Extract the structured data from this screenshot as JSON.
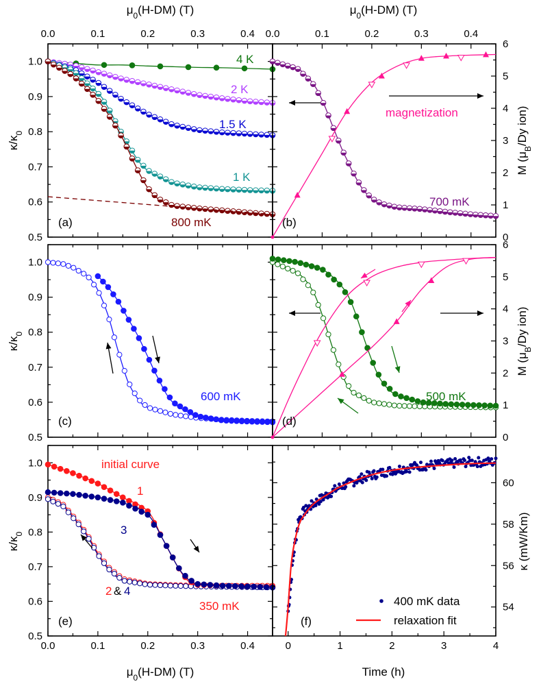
{
  "figure": {
    "x_axis_label": "μ0(H-DM) (T)",
    "y_axis_label_ratio": "κ/κ0",
    "y_axis_label_moment": "M (μB/Dy ion)",
    "y_axis_label_kappa": "κ (mW/Km)",
    "x_axis_label_time": "Time (h)"
  },
  "colors": {
    "dark_red": "#7a0000",
    "teal": "#149494",
    "blue": "#0a0ad2",
    "violet": "#b040ff",
    "green": "#117711",
    "pink": "#ff1493",
    "purple": "#7a1585",
    "bright_blue": "#1a1aff",
    "red": "#ff1a1a",
    "navy": "#00008b"
  },
  "panels": {
    "a": {
      "label": "(a)",
      "annotations": [
        {
          "text": "4 K",
          "color": "#117711"
        },
        {
          "text": "2 K",
          "color": "#b040ff"
        },
        {
          "text": "1.5 K",
          "color": "#0a0ad2"
        },
        {
          "text": "1 K",
          "color": "#149494"
        },
        {
          "text": "800 mK",
          "color": "#7a0000"
        }
      ]
    },
    "b": {
      "label": "(b)",
      "annotations": [
        {
          "text": "magnetization",
          "color": "#ff1493"
        },
        {
          "text": "700 mK",
          "color": "#7a1585"
        }
      ]
    },
    "c": {
      "label": "(c)",
      "annotations": [
        {
          "text": "600 mK",
          "color": "#1a1aff"
        }
      ]
    },
    "d": {
      "label": "(d)",
      "annotations": [
        {
          "text": "500 mK",
          "color": "#117711"
        }
      ]
    },
    "e": {
      "label": "(e)",
      "annotations": [
        {
          "text": "initial curve",
          "color": "#ff1a1a"
        },
        {
          "text": "1",
          "color": "#ff1a1a"
        },
        {
          "text": "3",
          "color": "#00008b"
        },
        {
          "text": "350 mK",
          "color": "#ff1a1a"
        }
      ],
      "label_2": "2",
      "label_amp": "&",
      "label_4": "4"
    },
    "f": {
      "label": "(f)",
      "legend": [
        {
          "text": "400 mK data",
          "color": "#00008b"
        },
        {
          "text": "relaxation fit",
          "color": "#ff1a1a"
        }
      ]
    }
  },
  "chart_data": [
    {
      "id": "a",
      "type": "line",
      "xlabel": "μ0(H-DM) (T)",
      "ylabel": "κ/κ0",
      "xlim": [
        0,
        0.45
      ],
      "ylim": [
        0.5,
        1.05
      ],
      "xticks": [
        0.0,
        0.1,
        0.2,
        0.3,
        0.4
      ],
      "yticks": [
        0.5,
        0.6,
        0.7,
        0.8,
        0.9,
        1.0
      ],
      "series": [
        {
          "name": "4 K",
          "color": "#117711",
          "x": [
            0,
            0.05,
            0.1,
            0.15,
            0.2,
            0.25,
            0.3,
            0.35,
            0.4,
            0.45
          ],
          "y": [
            1.0,
            0.995,
            0.99,
            0.99,
            0.987,
            0.985,
            0.983,
            0.982,
            0.98,
            0.978
          ]
        },
        {
          "name": "2 K",
          "color": "#b040ff",
          "x": [
            0,
            0.05,
            0.1,
            0.15,
            0.2,
            0.25,
            0.3,
            0.35,
            0.4,
            0.45
          ],
          "y": [
            1.0,
            0.99,
            0.97,
            0.95,
            0.935,
            0.92,
            0.905,
            0.895,
            0.887,
            0.882
          ]
        },
        {
          "name": "1.5 K",
          "color": "#0a0ad2",
          "x": [
            0,
            0.05,
            0.1,
            0.15,
            0.2,
            0.25,
            0.3,
            0.35,
            0.4,
            0.45
          ],
          "y": [
            1.0,
            0.98,
            0.94,
            0.89,
            0.85,
            0.82,
            0.805,
            0.798,
            0.794,
            0.79
          ]
        },
        {
          "name": "1 K",
          "color": "#149494",
          "x": [
            0,
            0.05,
            0.1,
            0.12,
            0.15,
            0.18,
            0.2,
            0.25,
            0.3,
            0.35,
            0.4,
            0.45
          ],
          "y": [
            1.0,
            0.975,
            0.91,
            0.87,
            0.79,
            0.72,
            0.69,
            0.655,
            0.642,
            0.637,
            0.634,
            0.632
          ]
        },
        {
          "name": "800 mK",
          "color": "#7a0000",
          "x": [
            0,
            0.05,
            0.08,
            0.1,
            0.13,
            0.15,
            0.18,
            0.2,
            0.22,
            0.25,
            0.3,
            0.35,
            0.4,
            0.45
          ],
          "y": [
            1.0,
            0.96,
            0.92,
            0.89,
            0.83,
            0.78,
            0.69,
            0.64,
            0.61,
            0.59,
            0.582,
            0.576,
            0.57,
            0.565
          ]
        },
        {
          "name": "800 mK baseline",
          "color": "#7a0000",
          "style": "dashed",
          "x": [
            0,
            0.45
          ],
          "y": [
            0.615,
            0.565
          ]
        }
      ]
    },
    {
      "id": "b",
      "type": "line",
      "xlabel": "μ0(H-DM) (T)",
      "ylabel": "κ/κ0",
      "y2label": "M (μB/Dy ion)",
      "xlim": [
        0,
        0.45
      ],
      "ylim": [
        0.5,
        1.05
      ],
      "y2lim": [
        0,
        6
      ],
      "xticks": [
        0.0,
        0.1,
        0.2,
        0.3,
        0.4
      ],
      "y2ticks": [
        0,
        1,
        2,
        3,
        4,
        5,
        6
      ],
      "series": [
        {
          "name": "700 mK",
          "axis": "left",
          "color": "#7a1585",
          "x": [
            0,
            0.05,
            0.08,
            0.1,
            0.12,
            0.14,
            0.15,
            0.16,
            0.18,
            0.2,
            0.22,
            0.25,
            0.3,
            0.35,
            0.4,
            0.45
          ],
          "y": [
            1.0,
            0.98,
            0.94,
            0.89,
            0.82,
            0.75,
            0.72,
            0.69,
            0.64,
            0.61,
            0.595,
            0.585,
            0.58,
            0.572,
            0.565,
            0.56
          ]
        },
        {
          "name": "magnetization",
          "axis": "right",
          "color": "#ff1493",
          "x": [
            0,
            0.05,
            0.1,
            0.15,
            0.2,
            0.25,
            0.3,
            0.35,
            0.4,
            0.45
          ],
          "y": [
            0,
            1.3,
            2.6,
            3.9,
            4.8,
            5.3,
            5.55,
            5.62,
            5.65,
            5.67
          ]
        }
      ]
    },
    {
      "id": "c",
      "type": "line",
      "xlabel": "",
      "ylabel": "κ/κ0",
      "xlim": [
        0,
        0.45
      ],
      "ylim": [
        0.5,
        1.05
      ],
      "yticks": [
        0.5,
        0.6,
        0.7,
        0.8,
        0.9,
        1.0
      ],
      "series": [
        {
          "name": "600 mK up",
          "color": "#1a1aff",
          "filled": true,
          "x": [
            0.1,
            0.12,
            0.14,
            0.16,
            0.18,
            0.2,
            0.22,
            0.25,
            0.3,
            0.35,
            0.4,
            0.45
          ],
          "y": [
            0.96,
            0.93,
            0.89,
            0.84,
            0.79,
            0.73,
            0.67,
            0.6,
            0.56,
            0.548,
            0.545,
            0.543
          ]
        },
        {
          "name": "600 mK down",
          "color": "#1a1aff",
          "filled": false,
          "x": [
            0,
            0.03,
            0.05,
            0.08,
            0.1,
            0.12,
            0.14,
            0.16,
            0.18,
            0.2,
            0.25,
            0.3,
            0.35,
            0.4,
            0.45
          ],
          "y": [
            1.0,
            0.995,
            0.985,
            0.96,
            0.92,
            0.85,
            0.75,
            0.66,
            0.61,
            0.585,
            0.565,
            0.555,
            0.55,
            0.547,
            0.545
          ]
        }
      ]
    },
    {
      "id": "d",
      "type": "line",
      "xlabel": "",
      "ylabel": "κ/κ0",
      "y2label": "M (μB/Dy ion)",
      "xlim": [
        0,
        0.45
      ],
      "ylim": [
        0.5,
        1.05
      ],
      "y2lim": [
        0,
        6
      ],
      "series": [
        {
          "name": "500 mK up",
          "axis": "left",
          "color": "#117711",
          "filled": true,
          "x": [
            0,
            0.05,
            0.1,
            0.14,
            0.16,
            0.18,
            0.2,
            0.22,
            0.25,
            0.3,
            0.35,
            0.4,
            0.45
          ],
          "y": [
            1.01,
            1.0,
            0.98,
            0.93,
            0.88,
            0.8,
            0.72,
            0.66,
            0.62,
            0.6,
            0.595,
            0.592,
            0.59
          ]
        },
        {
          "name": "500 mK down",
          "axis": "left",
          "color": "#117711",
          "filled": false,
          "x": [
            0,
            0.05,
            0.08,
            0.1,
            0.12,
            0.14,
            0.16,
            0.2,
            0.25,
            0.3,
            0.35,
            0.4,
            0.45
          ],
          "y": [
            1.0,
            0.97,
            0.92,
            0.85,
            0.76,
            0.68,
            0.63,
            0.6,
            0.59,
            0.588,
            0.587,
            0.586,
            0.585
          ]
        },
        {
          "name": "M up",
          "axis": "right",
          "color": "#ff1493",
          "x": [
            0,
            0.05,
            0.1,
            0.15,
            0.2,
            0.25,
            0.3,
            0.35,
            0.4,
            0.45
          ],
          "y": [
            0,
            0.7,
            1.4,
            2.1,
            2.8,
            3.6,
            4.6,
            5.3,
            5.55,
            5.6
          ]
        },
        {
          "name": "M down",
          "axis": "right",
          "color": "#ff1493",
          "x": [
            0,
            0.03,
            0.06,
            0.1,
            0.15,
            0.2,
            0.25,
            0.3,
            0.35,
            0.4,
            0.45
          ],
          "y": [
            0,
            1.1,
            2.1,
            3.3,
            4.4,
            5.0,
            5.3,
            5.45,
            5.52,
            5.57,
            5.6
          ]
        }
      ]
    },
    {
      "id": "e",
      "type": "line",
      "xlabel": "μ0(H-DM) (T)",
      "ylabel": "κ/κ0",
      "xlim": [
        0,
        0.45
      ],
      "ylim": [
        0.5,
        1.05
      ],
      "xticks": [
        0.0,
        0.1,
        0.2,
        0.3,
        0.4
      ],
      "yticks": [
        0.5,
        0.6,
        0.7,
        0.8,
        0.9,
        1.0
      ],
      "series": [
        {
          "name": "initial curve",
          "color": "#ff1a1a",
          "filled": true,
          "x": [
            0,
            0.05,
            0.1,
            0.15,
            0.2,
            0.23,
            0.26,
            0.28,
            0.3,
            0.35,
            0.4,
            0.45
          ],
          "y": [
            0.995,
            0.97,
            0.94,
            0.9,
            0.86,
            0.78,
            0.7,
            0.66,
            0.648,
            0.645,
            0.643,
            0.642
          ]
        },
        {
          "name": "3",
          "color": "#00008b",
          "filled": true,
          "x": [
            0,
            0.05,
            0.1,
            0.15,
            0.2,
            0.23,
            0.26,
            0.28,
            0.3,
            0.35,
            0.4,
            0.45
          ],
          "y": [
            0.915,
            0.91,
            0.9,
            0.885,
            0.85,
            0.78,
            0.7,
            0.665,
            0.65,
            0.645,
            0.643,
            0.64
          ]
        },
        {
          "name": "2",
          "color": "#ff1a1a",
          "filled": false,
          "x": [
            0,
            0.03,
            0.06,
            0.08,
            0.1,
            0.12,
            0.15,
            0.2,
            0.25,
            0.3,
            0.35,
            0.4,
            0.45
          ],
          "y": [
            0.9,
            0.88,
            0.83,
            0.79,
            0.74,
            0.7,
            0.665,
            0.65,
            0.647,
            0.645,
            0.645,
            0.645,
            0.645
          ]
        },
        {
          "name": "4",
          "color": "#00008b",
          "filled": false,
          "x": [
            0,
            0.03,
            0.06,
            0.08,
            0.1,
            0.12,
            0.15,
            0.2,
            0.25,
            0.3,
            0.35,
            0.4,
            0.45
          ],
          "y": [
            0.895,
            0.875,
            0.825,
            0.785,
            0.735,
            0.695,
            0.66,
            0.648,
            0.645,
            0.643,
            0.642,
            0.641,
            0.64
          ]
        }
      ]
    },
    {
      "id": "f",
      "type": "scatter",
      "xlabel": "Time (h)",
      "y2label": "κ (mW/Km)",
      "xlim": [
        -0.3,
        4
      ],
      "ylim": [
        52.6,
        61.8
      ],
      "xticks": [
        0,
        1,
        2,
        3,
        4
      ],
      "y2ticks": [
        54,
        56,
        58,
        60
      ],
      "series": [
        {
          "name": "400 mK data",
          "color": "#00008b",
          "x": [
            0.0,
            0.1,
            0.2,
            0.3,
            0.5,
            0.8,
            1.0,
            1.5,
            2.0,
            2.5,
            3.0,
            3.5,
            4.0
          ],
          "y": [
            53.8,
            56.5,
            58.2,
            58.6,
            59.0,
            59.5,
            59.8,
            60.3,
            60.6,
            60.8,
            60.9,
            61.0,
            61.0
          ]
        },
        {
          "name": "relaxation fit",
          "color": "#ff1a1a",
          "x": [
            -0.05,
            0.0,
            0.05,
            0.1,
            0.2,
            0.3,
            0.5,
            0.8,
            1.0,
            1.5,
            2.0,
            2.5,
            3.0,
            3.5,
            4.0
          ],
          "y": [
            52.6,
            54.0,
            55.8,
            56.8,
            57.9,
            58.4,
            59.0,
            59.5,
            59.8,
            60.3,
            60.6,
            60.75,
            60.85,
            60.92,
            60.95
          ]
        }
      ]
    }
  ]
}
